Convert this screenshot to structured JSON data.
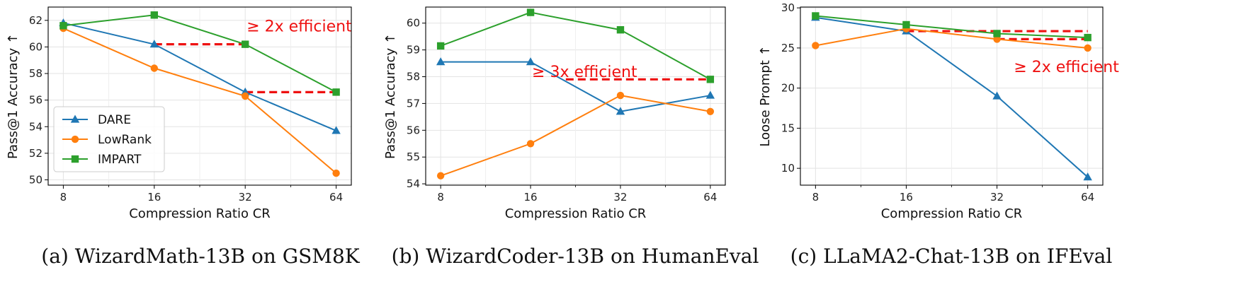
{
  "chart_data": [
    {
      "type": "line",
      "caption": "(a) WizardMath-13B on GSM8K",
      "xlabel": "Compression Ratio CR",
      "ylabel": "Pass@1 Accuracy ↑",
      "categories": [
        "8",
        "16",
        "32",
        "64"
      ],
      "x_scale": "log2",
      "ylim": [
        49.6,
        63.0
      ],
      "yticks": [
        50,
        52,
        54,
        56,
        58,
        60,
        62
      ],
      "grid": true,
      "legend": "lower-left",
      "series": [
        {
          "name": "DARE",
          "color": "#1f77b4",
          "marker": "triangle",
          "values": [
            61.8,
            60.2,
            56.6,
            53.7
          ]
        },
        {
          "name": "LowRank",
          "color": "#ff7f0e",
          "marker": "circle",
          "values": [
            61.4,
            58.4,
            56.3,
            50.5
          ]
        },
        {
          "name": "IMPART",
          "color": "#2ca02c",
          "marker": "square",
          "values": [
            61.6,
            62.4,
            60.2,
            56.6
          ]
        }
      ],
      "annotations": [
        {
          "text": "≥ 2x efficient",
          "x": 32,
          "y": 61.6,
          "align": "start"
        }
      ],
      "dashes": [
        {
          "x1": 16,
          "x2": 32,
          "y": 60.2
        },
        {
          "x1": 32,
          "x2": 64,
          "y": 56.6
        }
      ]
    },
    {
      "type": "line",
      "caption": "(b) WizardCoder-13B on HumanEval",
      "xlabel": "Compression Ratio CR",
      "ylabel": "Pass@1 Accuracy ↑",
      "categories": [
        "8",
        "16",
        "32",
        "64"
      ],
      "x_scale": "log2",
      "ylim": [
        53.95,
        60.6
      ],
      "yticks": [
        54,
        55,
        56,
        57,
        58,
        59,
        60
      ],
      "grid": true,
      "series": [
        {
          "name": "DARE",
          "color": "#1f77b4",
          "marker": "triangle",
          "values": [
            58.55,
            58.55,
            56.7,
            57.3
          ]
        },
        {
          "name": "LowRank",
          "color": "#ff7f0e",
          "marker": "circle",
          "values": [
            54.3,
            55.5,
            57.3,
            56.7
          ]
        },
        {
          "name": "IMPART",
          "color": "#2ca02c",
          "marker": "square",
          "values": [
            59.15,
            60.4,
            59.75,
            57.9
          ]
        }
      ],
      "annotations": [
        {
          "text": "≥ 3x efficient",
          "x": 16,
          "y": 58.2,
          "align": "start"
        }
      ],
      "dashes": [
        {
          "x1": 21,
          "x2": 64,
          "y": 57.9
        }
      ]
    },
    {
      "type": "line",
      "caption": "(c) LLaMA2-Chat-13B on IFEval",
      "xlabel": "Compression Ratio CR",
      "ylabel": "Loose Prompt ↑",
      "categories": [
        "8",
        "16",
        "32",
        "64"
      ],
      "x_scale": "log2",
      "ylim": [
        7.9,
        30.1
      ],
      "yticks": [
        10,
        15,
        20,
        25,
        30
      ],
      "grid": true,
      "series": [
        {
          "name": "DARE",
          "color": "#1f77b4",
          "marker": "triangle",
          "values": [
            28.8,
            27.1,
            19.0,
            8.9
          ]
        },
        {
          "name": "LowRank",
          "color": "#ff7f0e",
          "marker": "circle",
          "values": [
            25.3,
            27.4,
            26.1,
            25.0
          ]
        },
        {
          "name": "IMPART",
          "color": "#2ca02c",
          "marker": "square",
          "values": [
            29.0,
            27.9,
            26.8,
            26.3
          ]
        }
      ],
      "annotations": [
        {
          "text": "≥ 2x efficient",
          "x": 36,
          "y": 22.7,
          "align": "start"
        }
      ],
      "dashes": [
        {
          "x1": 16,
          "x2": 64,
          "y": 27.1
        },
        {
          "x1": 32,
          "x2": 64,
          "y": 26.1
        }
      ]
    }
  ]
}
